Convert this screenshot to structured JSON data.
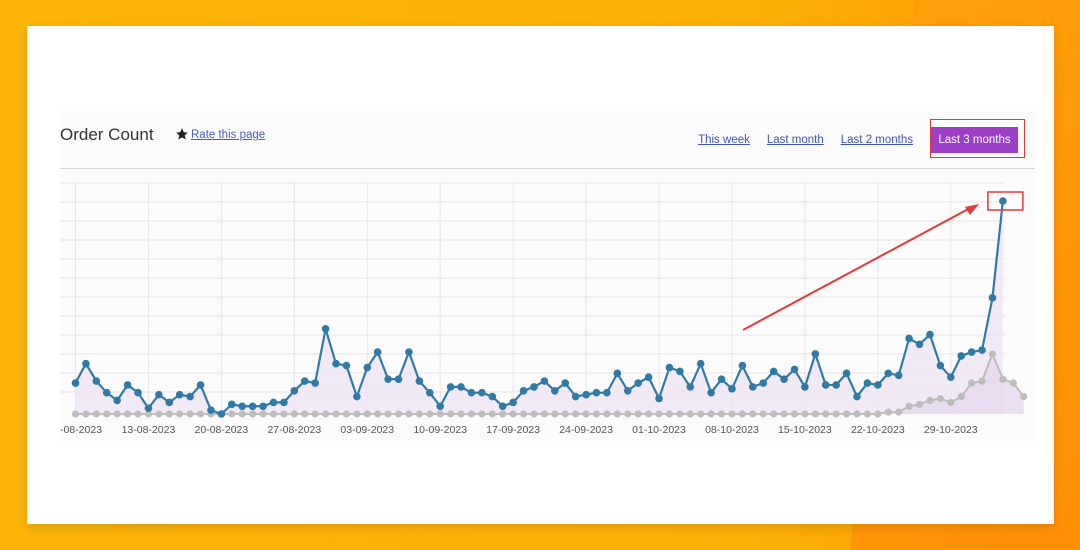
{
  "header": {
    "title": "Order Count",
    "rate_label": "Rate this page"
  },
  "ranges": {
    "this_week": "This week",
    "last_month": "Last month",
    "last_2_months": "Last 2 months",
    "last_3_months": "Last 3 months",
    "active": "Last 3 months"
  },
  "colors": {
    "primary_line": "#2f7aa7",
    "secondary_line": "#bdbdbd",
    "area_fill": "#efe3f5",
    "active_button": "#9b3fc8",
    "annotation": "#e03a3a"
  },
  "chart_data": {
    "type": "line",
    "title": "Order Count",
    "x_tick_labels": [
      "-08-2023",
      "13-08-2023",
      "20-08-2023",
      "27-08-2023",
      "03-09-2023",
      "10-09-2023",
      "17-09-2023",
      "24-09-2023",
      "01-10-2023",
      "08-10-2023",
      "15-10-2023",
      "22-10-2023",
      "29-10-2023"
    ],
    "x_start": "06-08-2023",
    "ylim": [
      0,
      11
    ],
    "grid": true,
    "series": [
      {
        "values": [
          1.6,
          2.6,
          1.7,
          1.1,
          0.7,
          1.5,
          1.1,
          0.3,
          1.0,
          0.6,
          1.0,
          0.9,
          1.5,
          0.2,
          0.0,
          0.5,
          0.4,
          0.4,
          0.4,
          0.6,
          0.6,
          1.2,
          1.7,
          1.6,
          4.4,
          2.6,
          2.5,
          0.9,
          2.4,
          3.2,
          1.8,
          1.8,
          3.2,
          1.7,
          1.1,
          0.4,
          1.4,
          1.4,
          1.1,
          1.1,
          0.9,
          0.4,
          0.6,
          1.2,
          1.4,
          1.7,
          1.2,
          1.6,
          0.9,
          1.0,
          1.1,
          1.1,
          2.1,
          1.2,
          1.6,
          1.9,
          0.8,
          2.4,
          2.2,
          1.4,
          2.6,
          1.1,
          1.8,
          1.3,
          2.5,
          1.4,
          1.6,
          2.2,
          1.8,
          2.3,
          1.4,
          3.1,
          1.5,
          1.5,
          2.1,
          0.9,
          1.6,
          1.5,
          2.1,
          2.0,
          3.9,
          3.6,
          4.1,
          2.5,
          1.9,
          3.0,
          3.2,
          3.3,
          6.0,
          11.0
        ]
      },
      {
        "values": [
          0,
          0,
          0,
          0,
          0,
          0,
          0,
          0,
          0,
          0,
          0,
          0,
          0,
          0,
          0,
          0,
          0,
          0,
          0,
          0,
          0,
          0,
          0,
          0,
          0,
          0,
          0,
          0,
          0,
          0,
          0,
          0,
          0,
          0,
          0,
          0,
          0,
          0,
          0,
          0,
          0,
          0,
          0,
          0,
          0,
          0,
          0,
          0,
          0,
          0,
          0,
          0,
          0,
          0,
          0,
          0,
          0,
          0,
          0,
          0,
          0,
          0,
          0,
          0,
          0,
          0,
          0,
          0,
          0,
          0,
          0,
          0,
          0,
          0,
          0,
          0,
          0,
          0,
          0.1,
          0.1,
          0.4,
          0.5,
          0.7,
          0.8,
          0.6,
          0.9,
          1.6,
          1.7,
          3.1,
          1.8,
          1.6,
          0.9
        ]
      }
    ]
  }
}
